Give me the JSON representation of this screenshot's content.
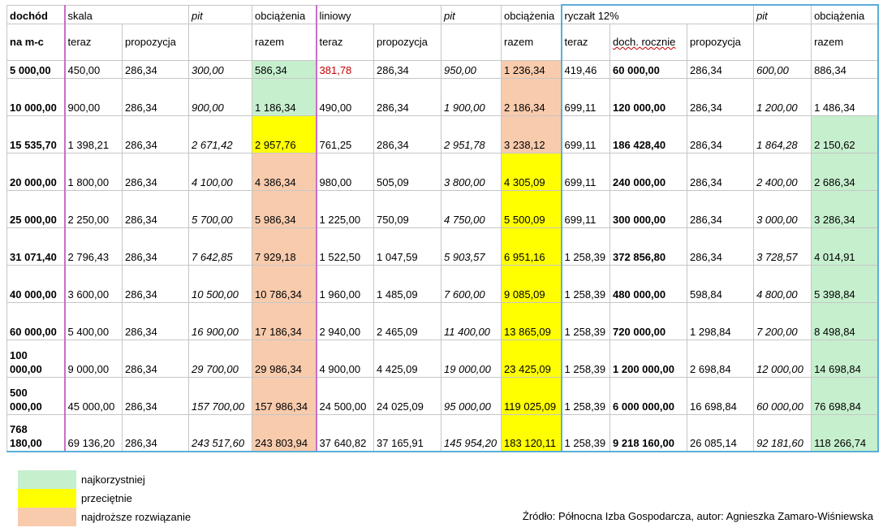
{
  "header": {
    "row1": [
      "dochód",
      "skala",
      "pit",
      "obciążenia",
      "liniowy",
      "pit",
      "obciążenia",
      "ryczałt 12%",
      "pit",
      "obciążenia"
    ],
    "row2": [
      "na m-c",
      "teraz",
      "propozycja",
      "",
      "razem",
      "teraz",
      "propozycja",
      "",
      "razem",
      "teraz",
      "doch. rocznie",
      "propozycja",
      "",
      "razem"
    ]
  },
  "rows": [
    {
      "d": "5 000,00",
      "c": [
        "450,00",
        "286,34",
        "300,00",
        "586,34",
        "381,78",
        "286,34",
        "950,00",
        "1 236,34",
        "419,46",
        "60 000,00",
        "286,34",
        "600,00",
        "886,34"
      ]
    },
    {
      "d": "10 000,00",
      "c": [
        "900,00",
        "286,34",
        "900,00",
        "1 186,34",
        "490,00",
        "286,34",
        "1 900,00",
        "2 186,34",
        "699,11",
        "120 000,00",
        "286,34",
        "1 200,00",
        "1 486,34"
      ]
    },
    {
      "d": "15 535,70",
      "c": [
        "1 398,21",
        "286,34",
        "2 671,42",
        "2 957,76",
        "761,25",
        "286,34",
        "2 951,78",
        "3 238,12",
        "699,11",
        "186 428,40",
        "286,34",
        "1 864,28",
        "2 150,62"
      ]
    },
    {
      "d": "20 000,00",
      "c": [
        "1 800,00",
        "286,34",
        "4 100,00",
        "4 386,34",
        "980,00",
        "505,09",
        "3 800,00",
        "4 305,09",
        "699,11",
        "240 000,00",
        "286,34",
        "2 400,00",
        "2 686,34"
      ]
    },
    {
      "d": "25 000,00",
      "c": [
        "2 250,00",
        "286,34",
        "5 700,00",
        "5 986,34",
        "1 225,00",
        "750,09",
        "4 750,00",
        "5 500,09",
        "699,11",
        "300 000,00",
        "286,34",
        "3 000,00",
        "3 286,34"
      ]
    },
    {
      "d": "31 071,40",
      "c": [
        "2 796,43",
        "286,34",
        "7 642,85",
        "7 929,18",
        "1 522,50",
        "1 047,59",
        "5 903,57",
        "6 951,16",
        "1 258,39",
        "372 856,80",
        "286,34",
        "3 728,57",
        "4 014,91"
      ]
    },
    {
      "d": "40 000,00",
      "c": [
        "3 600,00",
        "286,34",
        "10 500,00",
        "10 786,34",
        "1 960,00",
        "1 485,09",
        "7 600,00",
        "9 085,09",
        "1 258,39",
        "480 000,00",
        "598,84",
        "4 800,00",
        "5 398,84"
      ]
    },
    {
      "d": "60 000,00",
      "c": [
        "5 400,00",
        "286,34",
        "16 900,00",
        "17 186,34",
        "2 940,00",
        "2 465,09",
        "11 400,00",
        "13 865,09",
        "1 258,39",
        "720 000,00",
        "1 298,84",
        "7 200,00",
        "8 498,84"
      ]
    },
    {
      "d": "100 000,00",
      "c": [
        "9 000,00",
        "286,34",
        "29 700,00",
        "29 986,34",
        "4 900,00",
        "4 425,09",
        "19 000,00",
        "23 425,09",
        "1 258,39",
        "1 200 000,00",
        "2 698,84",
        "12 000,00",
        "14 698,84"
      ]
    },
    {
      "d": "500 000,00",
      "c": [
        "45 000,00",
        "286,34",
        "157 700,00",
        "157 986,34",
        "24 500,00",
        "24 025,09",
        "95 000,00",
        "119 025,09",
        "1 258,39",
        "6 000 000,00",
        "16 698,84",
        "60 000,00",
        "76 698,84"
      ]
    },
    {
      "d": "768 180,00",
      "c": [
        "69 136,20",
        "286,34",
        "243 517,60",
        "243 803,94",
        "37 640,82",
        "37 165,91",
        "145 954,20",
        "183 120,11",
        "1 258,39",
        "9 218 160,00",
        "26 085,14",
        "92 181,60",
        "118 266,74"
      ]
    }
  ],
  "fills": {
    "skala_total": [
      "g",
      "g",
      "y",
      "o",
      "o",
      "o",
      "o",
      "o",
      "o",
      "o",
      "o"
    ],
    "liniowy_total": [
      "o",
      "o",
      "o",
      "y",
      "y",
      "y",
      "y",
      "y",
      "y",
      "y",
      "y"
    ],
    "ryczalt_total": [
      "",
      "",
      "g",
      "g",
      "g",
      "g",
      "g",
      "g",
      "g",
      "g",
      "g"
    ]
  },
  "legend": [
    {
      "color": "#c6efce",
      "label": "najkorzystniej"
    },
    {
      "color": "#ffff00",
      "label": "przeciętnie"
    },
    {
      "color": "#f8cbad",
      "label": "najdroższe rozwiązanie"
    }
  ],
  "source": "Źródło: Północna Izba Gospodarcza, autor: Agnieszka Zamaro-Wiśniewska"
}
